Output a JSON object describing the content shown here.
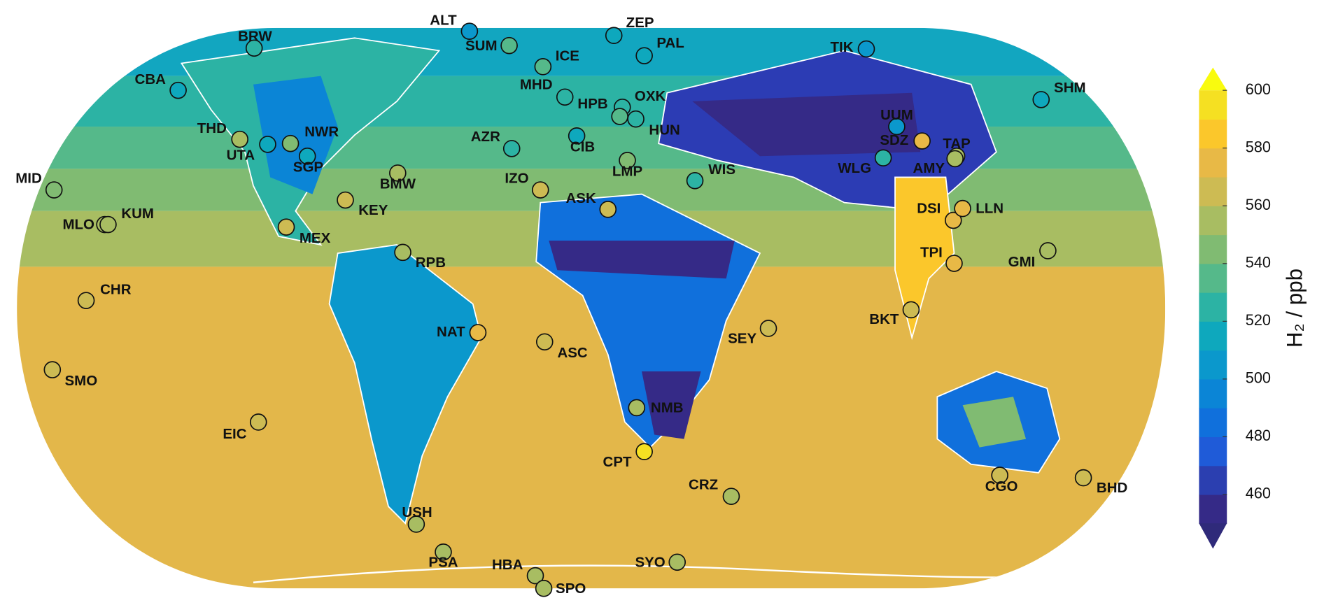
{
  "map": {
    "stations": [
      {
        "name": "ALT",
        "value": 500
      },
      {
        "name": "SUM",
        "value": 535
      },
      {
        "name": "ZEP",
        "value": 515
      },
      {
        "name": "PAL",
        "value": 515
      },
      {
        "name": "ICE",
        "value": 535
      },
      {
        "name": "MHD",
        "value": 525
      },
      {
        "name": "OXK",
        "value": 525
      },
      {
        "name": "HPB",
        "value": 535
      },
      {
        "name": "HUN",
        "value": 525
      },
      {
        "name": "CIB",
        "value": 515
      },
      {
        "name": "AZR",
        "value": 525
      },
      {
        "name": "LMP",
        "value": 545
      },
      {
        "name": "WIS",
        "value": 525
      },
      {
        "name": "IZO",
        "value": 565
      },
      {
        "name": "ASK",
        "value": 565
      },
      {
        "name": "BRW",
        "value": 525
      },
      {
        "name": "CBA",
        "value": 515
      },
      {
        "name": "THD",
        "value": 555
      },
      {
        "name": "UTA",
        "value": 515
      },
      {
        "name": "NWR",
        "value": 545
      },
      {
        "name": "SGP",
        "value": 515
      },
      {
        "name": "BMW",
        "value": 555
      },
      {
        "name": "KEY",
        "value": 565
      },
      {
        "name": "MEX",
        "value": 565
      },
      {
        "name": "RPB",
        "value": 555
      },
      {
        "name": "MID",
        "value": 545
      },
      {
        "name": "MLO",
        "value": 555
      },
      {
        "name": "KUM",
        "value": 555
      },
      {
        "name": "CHR",
        "value": 565
      },
      {
        "name": "SMO",
        "value": 565
      },
      {
        "name": "EIC",
        "value": 565
      },
      {
        "name": "NAT",
        "value": 575
      },
      {
        "name": "ASC",
        "value": 565
      },
      {
        "name": "SEY",
        "value": 565
      },
      {
        "name": "NMB",
        "value": 555
      },
      {
        "name": "CPT",
        "value": 595
      },
      {
        "name": "CRZ",
        "value": 555
      },
      {
        "name": "USH",
        "value": 555
      },
      {
        "name": "PSA",
        "value": 555
      },
      {
        "name": "HBA",
        "value": 555
      },
      {
        "name": "SPO",
        "value": 555
      },
      {
        "name": "SYO",
        "value": 555
      },
      {
        "name": "TIK",
        "value": 505
      },
      {
        "name": "SHM",
        "value": 515
      },
      {
        "name": "UUM",
        "value": 505
      },
      {
        "name": "SDZ",
        "value": 575
      },
      {
        "name": "TAP",
        "value": 555
      },
      {
        "name": "AMY",
        "value": 555
      },
      {
        "name": "WLG",
        "value": 525
      },
      {
        "name": "DSI",
        "value": 575
      },
      {
        "name": "LLN",
        "value": 575
      },
      {
        "name": "TPI",
        "value": 575
      },
      {
        "name": "GMI",
        "value": 555
      },
      {
        "name": "BKT",
        "value": 565
      },
      {
        "name": "CGO",
        "value": 565
      },
      {
        "name": "BHD",
        "value": 565
      }
    ],
    "colorbar": {
      "label": "H₂ / ppb",
      "range": [
        450,
        600
      ],
      "ticks": [
        460,
        480,
        500,
        520,
        540,
        560,
        580,
        600
      ],
      "colors": [
        "#352a87",
        "#2b3fb0",
        "#1f5bd8",
        "#1070dc",
        "#0b85d6",
        "#0b98cc",
        "#0ea8bd",
        "#2cb3a4",
        "#55b98a",
        "#80bb72",
        "#a8bd62",
        "#cdbb53",
        "#e8b946",
        "#fbc72b",
        "#f5e022"
      ],
      "under_color": "#2f2a7a",
      "over_color": "#f9fb0e"
    }
  }
}
